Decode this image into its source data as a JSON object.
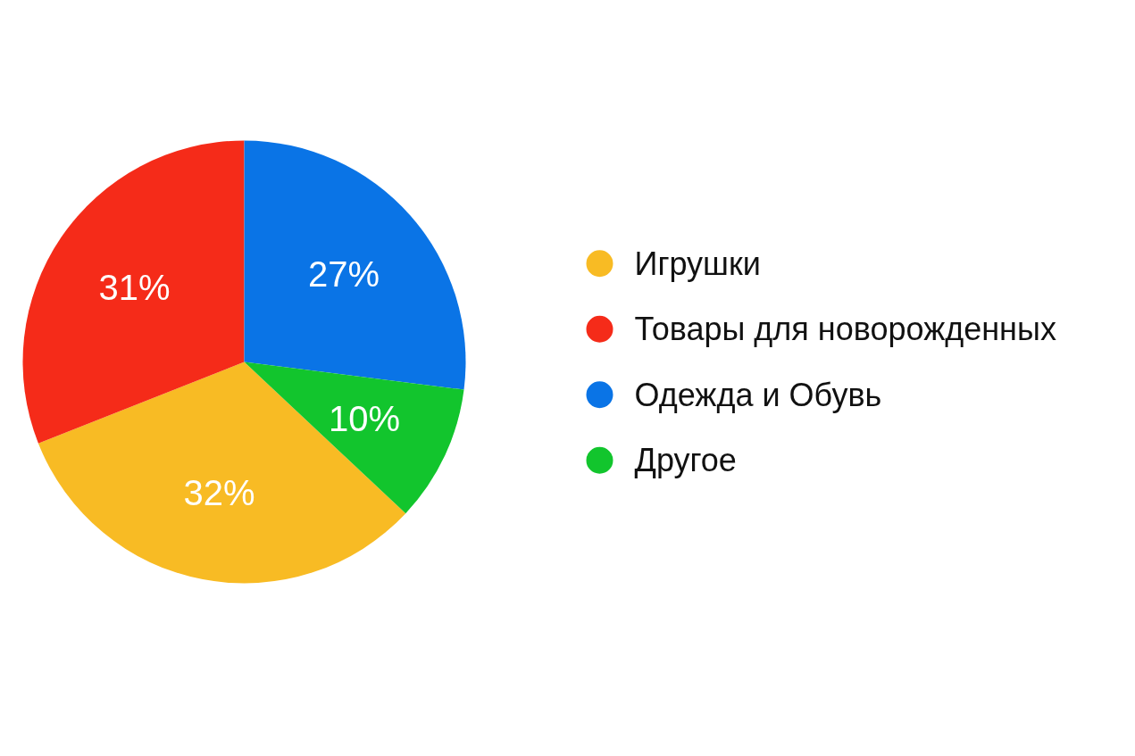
{
  "chart_data": {
    "type": "pie",
    "categories": [
      "Игрушки",
      "Товары для новорожденных",
      "Одежда и Обувь",
      "Другое"
    ],
    "values": [
      32,
      31,
      27,
      10
    ],
    "colors": [
      "#f8bb24",
      "#f52b19",
      "#0a74e6",
      "#12c52d"
    ],
    "value_labels": [
      "32%",
      "31%",
      "27%",
      "10%"
    ],
    "legend": "right"
  }
}
